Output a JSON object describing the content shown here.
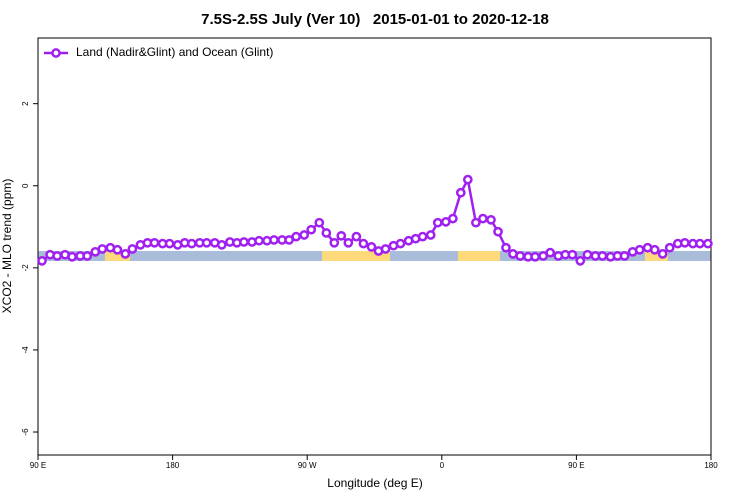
{
  "chart_data": {
    "type": "line",
    "title": "7.5S-2.5S July (Ver 10)   2015-01-01 to 2020-12-18",
    "xlabel": "Longitude (deg E)",
    "ylabel": "XCO2 - MLO trend (ppm)",
    "xlim": [
      90,
      540
    ],
    "ylim": [
      -6.56,
      3.6
    ],
    "xticks": [
      {
        "value": 90,
        "label": "90 E"
      },
      180,
      {
        "value": 270,
        "label": "90 W"
      },
      {
        "value": 360,
        "label": "0"
      },
      {
        "value": 450,
        "label": "90 E"
      },
      {
        "value": 540,
        "label": "180"
      }
    ],
    "yticks": [
      -6,
      -4,
      -2,
      0,
      2
    ],
    "legend": "topleft",
    "x": [
      92.7,
      98.1,
      102.8,
      108.1,
      112.8,
      118.2,
      122.9,
      128.3,
      133,
      138.4,
      143.1,
      148.4,
      153.1,
      158.5,
      163.2,
      167.9,
      173.3,
      178,
      183.4,
      188.1,
      192.8,
      198.1,
      202.8,
      208.2,
      212.9,
      218.3,
      223,
      227.7,
      233.1,
      237.8,
      243.1,
      247.8,
      253.2,
      257.9,
      262.6,
      268,
      272.7,
      278.1,
      282.8,
      288.1,
      292.8,
      297.5,
      302.9,
      307.6,
      313,
      317.7,
      322.4,
      327.7,
      332.4,
      337.8,
      342.5,
      347.2,
      352.6,
      357.3,
      362.7,
      367.4,
      372.7,
      377.4,
      382.8,
      387.5,
      392.9,
      397.6,
      402.9,
      407.6,
      412.4,
      417.7,
      422.4,
      427.8,
      432.5,
      437.9,
      442.6,
      447.3,
      452.6,
      457.4,
      462.7,
      467.4,
      472.8,
      477.5,
      482.2,
      487.6,
      492.3,
      497.6,
      502.4,
      507.7,
      512.4,
      517.8,
      522.5,
      527.9,
      532.6,
      537.9
    ],
    "series": [
      {
        "name": "Land (Nadir&Glint) and Ocean (Glint)",
        "color": "#a020f0",
        "values": [
          -1.83,
          -1.68,
          -1.71,
          -1.68,
          -1.73,
          -1.71,
          -1.71,
          -1.61,
          -1.54,
          -1.51,
          -1.56,
          -1.66,
          -1.54,
          -1.44,
          -1.39,
          -1.39,
          -1.41,
          -1.41,
          -1.44,
          -1.39,
          -1.41,
          -1.39,
          -1.39,
          -1.39,
          -1.44,
          -1.37,
          -1.39,
          -1.37,
          -1.37,
          -1.34,
          -1.34,
          -1.32,
          -1.32,
          -1.32,
          -1.24,
          -1.2,
          -1.07,
          -0.9,
          -1.15,
          -1.39,
          -1.22,
          -1.39,
          -1.24,
          -1.41,
          -1.49,
          -1.59,
          -1.54,
          -1.46,
          -1.41,
          -1.34,
          -1.29,
          -1.24,
          -1.2,
          -0.9,
          -0.88,
          -0.8,
          -0.17,
          0.15,
          -0.9,
          -0.8,
          -0.83,
          -1.12,
          -1.51,
          -1.66,
          -1.71,
          -1.73,
          -1.73,
          -1.71,
          -1.63,
          -1.71,
          -1.68,
          -1.68,
          -1.83,
          -1.68,
          -1.71,
          -1.71,
          -1.73,
          -1.71,
          -1.71,
          -1.61,
          -1.56,
          -1.51,
          -1.56,
          -1.66,
          -1.51,
          -1.41,
          -1.39,
          -1.41,
          -1.41,
          -1.41
        ]
      }
    ]
  }
}
